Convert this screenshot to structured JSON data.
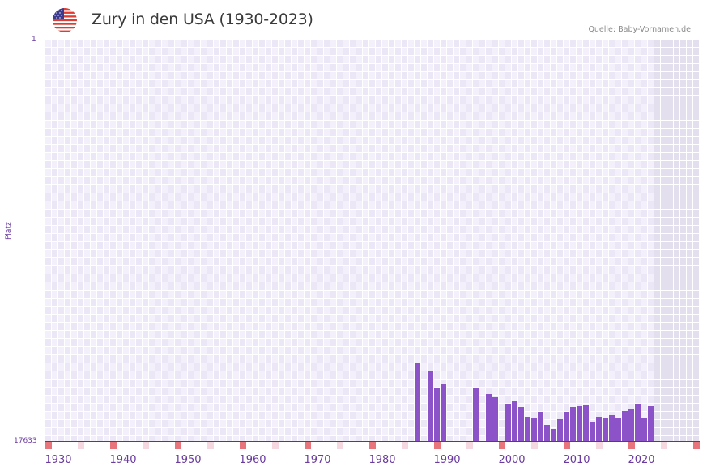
{
  "header": {
    "title": "Zury in den USA (1930-2023)",
    "source": "Quelle: Baby-Vornamen.de",
    "flag_icon": "usa-flag-icon"
  },
  "colors": {
    "bar": "#8c52c8",
    "axis": "#6a2c91",
    "label": "#6a3aa0",
    "decade_mark": "#e8747c",
    "half_decade_mark": "#f5d7df",
    "grid_light": "#f3f0fb",
    "grid_dark": "#ece7f7",
    "future_shade": "#e3dfee"
  },
  "chart_data": {
    "type": "bar",
    "title": "Zury in den USA (1930-2023)",
    "xlabel": "",
    "ylabel": "Platz",
    "y_axis_inverted": true,
    "ylim": [
      17633,
      1
    ],
    "yticks": [
      "1",
      "17633"
    ],
    "xticks": [
      "1930",
      "1940",
      "1950",
      "1960",
      "1970",
      "1980",
      "1990",
      "2000",
      "2010",
      "2020"
    ],
    "x_range": [
      1930,
      2030
    ],
    "grid": true,
    "legend": null,
    "source": "Quelle: Baby-Vornamen.de",
    "categories": [
      1987,
      1989,
      1990,
      1991,
      1996,
      1998,
      1999,
      2001,
      2002,
      2003,
      2004,
      2005,
      2006,
      2007,
      2008,
      2009,
      2010,
      2011,
      2012,
      2013,
      2014,
      2015,
      2016,
      2017,
      2018,
      2019,
      2020,
      2021,
      2022,
      2023
    ],
    "values": [
      14185,
      14576,
      15287,
      15145,
      15287,
      15572,
      15679,
      15999,
      15892,
      16141,
      16568,
      16603,
      16355,
      16924,
      17101,
      16674,
      16355,
      16141,
      16106,
      16070,
      16781,
      16568,
      16603,
      16497,
      16639,
      16319,
      16213,
      15999,
      16639,
      16106
    ]
  }
}
